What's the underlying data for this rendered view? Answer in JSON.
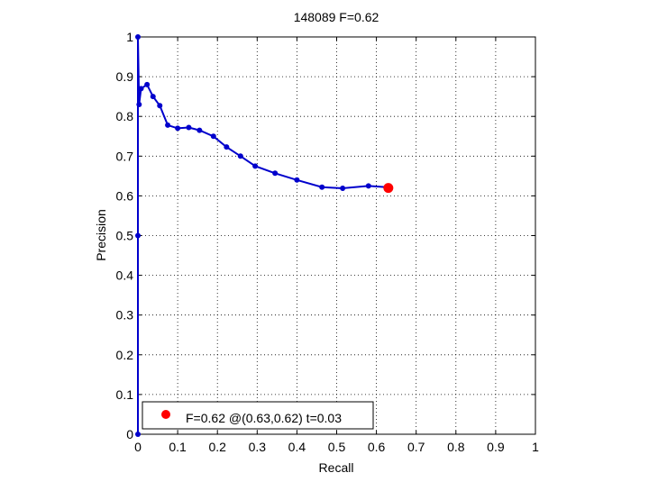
{
  "chart_data": {
    "type": "line",
    "title": "148089 F=0.62",
    "xlabel": "Recall",
    "ylabel": "Precision",
    "xlim": [
      0,
      1
    ],
    "ylim": [
      0,
      1
    ],
    "xticks": [
      "0",
      "0.1",
      "0.2",
      "0.3",
      "0.4",
      "0.5",
      "0.6",
      "0.7",
      "0.8",
      "0.9",
      "1"
    ],
    "yticks": [
      "0",
      "0.1",
      "0.2",
      "0.3",
      "0.4",
      "0.5",
      "0.6",
      "0.7",
      "0.8",
      "0.9",
      "1"
    ],
    "grid": true,
    "legend_position": "bottom-left",
    "series": [
      {
        "color": "#0000cc",
        "marker": "dot",
        "points": [
          [
            0.0,
            0.0
          ],
          [
            0.0,
            0.5
          ],
          [
            0.0,
            1.0
          ],
          [
            0.003,
            0.83
          ],
          [
            0.008,
            0.87
          ],
          [
            0.023,
            0.88
          ],
          [
            0.038,
            0.85
          ],
          [
            0.055,
            0.827
          ],
          [
            0.075,
            0.778
          ],
          [
            0.1,
            0.77
          ],
          [
            0.128,
            0.772
          ],
          [
            0.155,
            0.765
          ],
          [
            0.19,
            0.75
          ],
          [
            0.223,
            0.723
          ],
          [
            0.258,
            0.7
          ],
          [
            0.295,
            0.675
          ],
          [
            0.345,
            0.657
          ],
          [
            0.4,
            0.64
          ],
          [
            0.463,
            0.622
          ],
          [
            0.515,
            0.619
          ],
          [
            0.58,
            0.625
          ],
          [
            0.625,
            0.622
          ]
        ]
      }
    ],
    "best_point": {
      "recall": 0.63,
      "precision": 0.62,
      "color": "#ff0000",
      "legend_label": "F=0.62 @(0.63,0.62) t=0.03"
    }
  }
}
